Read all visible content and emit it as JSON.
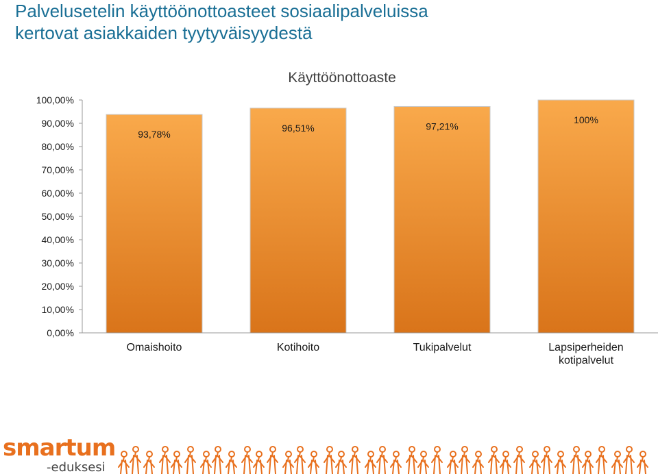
{
  "page": {
    "title_line1": "Palvelusetelin käyttöönottoasteet sosiaalipalveluissa",
    "title_line2": "kertovat asiakkaiden tyytyväisyydestä"
  },
  "colors": {
    "title": "#1a6f95",
    "bar_light": "#f9a94b",
    "bar_dark": "#d9741a",
    "logo": "#e8701e"
  },
  "chart_data": {
    "type": "bar",
    "title": "Käyttöönottoaste",
    "categories": [
      "Omaishoito",
      "Kotihoito",
      "Tukipalvelut",
      "Lapsiperheiden kotipalvelut"
    ],
    "category_lines": [
      [
        "Omaishoito"
      ],
      [
        "Kotihoito"
      ],
      [
        "Tukipalvelut"
      ],
      [
        "Lapsiperheiden",
        "kotipalvelut"
      ]
    ],
    "values": [
      93.78,
      96.51,
      97.21,
      100
    ],
    "data_labels": [
      "93,78%",
      "96,51%",
      "97,21%",
      "100%"
    ],
    "ylim": [
      0,
      100
    ],
    "yticks": [
      {
        "value": 0,
        "label": "0,00%"
      },
      {
        "value": 10,
        "label": "10,00%"
      },
      {
        "value": 20,
        "label": "20,00%"
      },
      {
        "value": 30,
        "label": "30,00%"
      },
      {
        "value": 40,
        "label": "40,00%"
      },
      {
        "value": 50,
        "label": "50,00%"
      },
      {
        "value": 60,
        "label": "60,00%"
      },
      {
        "value": 70,
        "label": "70,00%"
      },
      {
        "value": 80,
        "label": "80,00%"
      },
      {
        "value": 90,
        "label": "90,00%"
      },
      {
        "value": 100,
        "label": "100,00%"
      }
    ],
    "grid": false,
    "legend": "none"
  },
  "footer": {
    "logo_main": "smartum",
    "logo_sub": "-eduksesi"
  }
}
